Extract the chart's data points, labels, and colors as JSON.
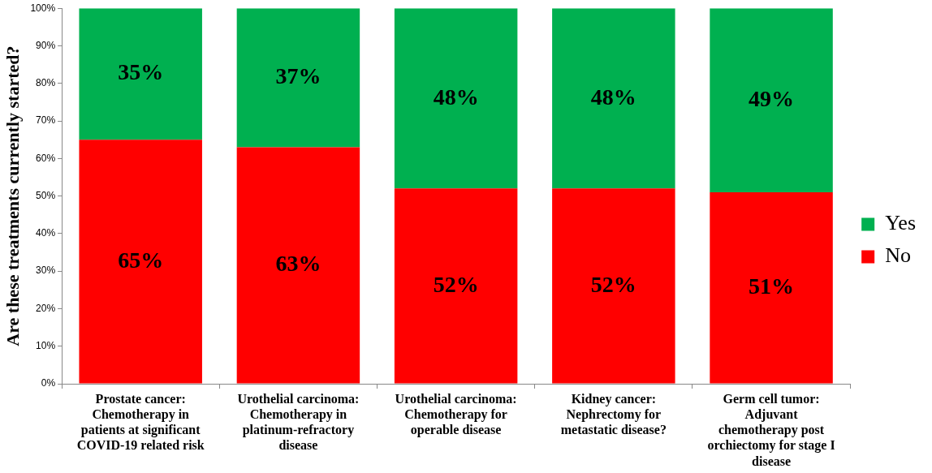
{
  "chart_data": {
    "type": "bar",
    "stacked": true,
    "ylabel": "Are these treatments currently started?",
    "categories": [
      "Prostate cancer:\nChemotherapy in\npatients at significant\nCOVID-19 related risk",
      "Urothelial carcinoma:\nChemotherapy in\nplatinum-refractory\ndisease",
      "Urothelial carcinoma:\nChemotherapy for\noperable disease",
      "Kidney cancer:\nNephrectomy for\nmetastatic disease?",
      "Germ cell tumor:\nAdjuvant\nchemotherapy post\norchiectomy for stage I\ndisease"
    ],
    "series": [
      {
        "name": "No",
        "color": "#ff0000",
        "values": [
          65,
          63,
          52,
          52,
          51
        ],
        "value_labels": [
          "65%",
          "63%",
          "52%",
          "52%",
          "51%"
        ]
      },
      {
        "name": "Yes",
        "color": "#00b050",
        "values": [
          35,
          37,
          48,
          48,
          49
        ],
        "value_labels": [
          "35%",
          "37%",
          "48%",
          "48%",
          "49%"
        ]
      }
    ],
    "ylim": [
      0,
      100
    ],
    "yticks": [
      {
        "value": 0,
        "label": "0%"
      },
      {
        "value": 10,
        "label": "10%"
      },
      {
        "value": 20,
        "label": "20%"
      },
      {
        "value": 30,
        "label": "30%"
      },
      {
        "value": 40,
        "label": "40%"
      },
      {
        "value": 50,
        "label": "50%"
      },
      {
        "value": 60,
        "label": "60%"
      },
      {
        "value": 70,
        "label": "70%"
      },
      {
        "value": 80,
        "label": "80%"
      },
      {
        "value": 90,
        "label": "90%"
      },
      {
        "value": 100,
        "label": "100%"
      }
    ],
    "grid": false,
    "legend": "right"
  }
}
